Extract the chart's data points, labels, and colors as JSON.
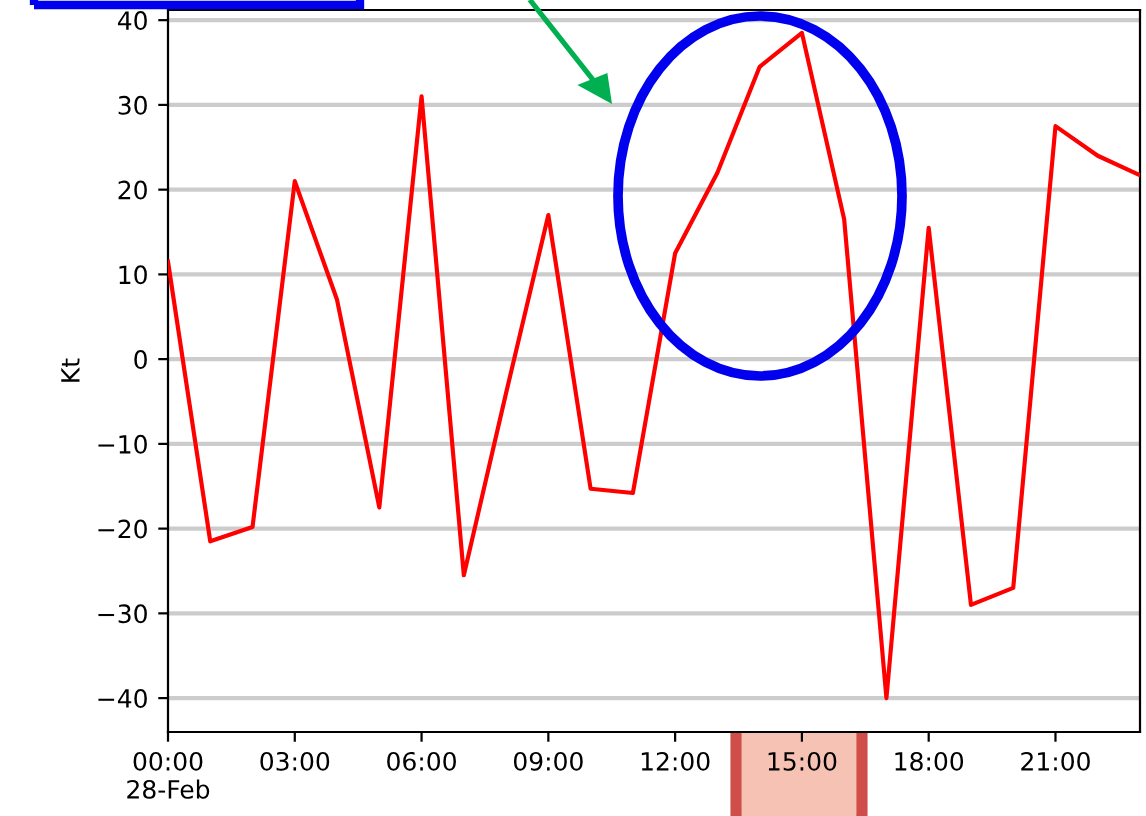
{
  "chart_data": {
    "type": "line",
    "ylabel": "Kt",
    "x": [
      0,
      1,
      2,
      3,
      4,
      5,
      6,
      7,
      8,
      9,
      10,
      11,
      12,
      13,
      14,
      15,
      16,
      17,
      18,
      19,
      20,
      21,
      22,
      23
    ],
    "series": [
      {
        "color": "#ff0000",
        "values": [
          11.5,
          -21.5,
          -19.8,
          21,
          7,
          -17.5,
          31,
          -25.5,
          -4,
          17,
          -15.3,
          -15.8,
          12.5,
          22,
          34.5,
          38.5,
          16.5,
          -40,
          15.5,
          -29,
          -27,
          27.5,
          24,
          21.7
        ]
      }
    ],
    "xlim": [
      0,
      23
    ],
    "xticks": [
      {
        "value": 0,
        "label": "00:00\n28-Feb"
      },
      {
        "value": 3,
        "label": "03:00"
      },
      {
        "value": 6,
        "label": "06:00"
      },
      {
        "value": 9,
        "label": "09:00"
      },
      {
        "value": 12,
        "label": "12:00"
      },
      {
        "value": 15,
        "label": "15:00"
      },
      {
        "value": 18,
        "label": "18:00"
      },
      {
        "value": 21,
        "label": "21:00"
      }
    ],
    "ylim": [
      -44,
      41.2
    ],
    "yticks": [
      -40,
      -30,
      -20,
      -10,
      0,
      10,
      20,
      30,
      40
    ],
    "grid": "y",
    "marker": "none",
    "line_style": "solid"
  }
}
